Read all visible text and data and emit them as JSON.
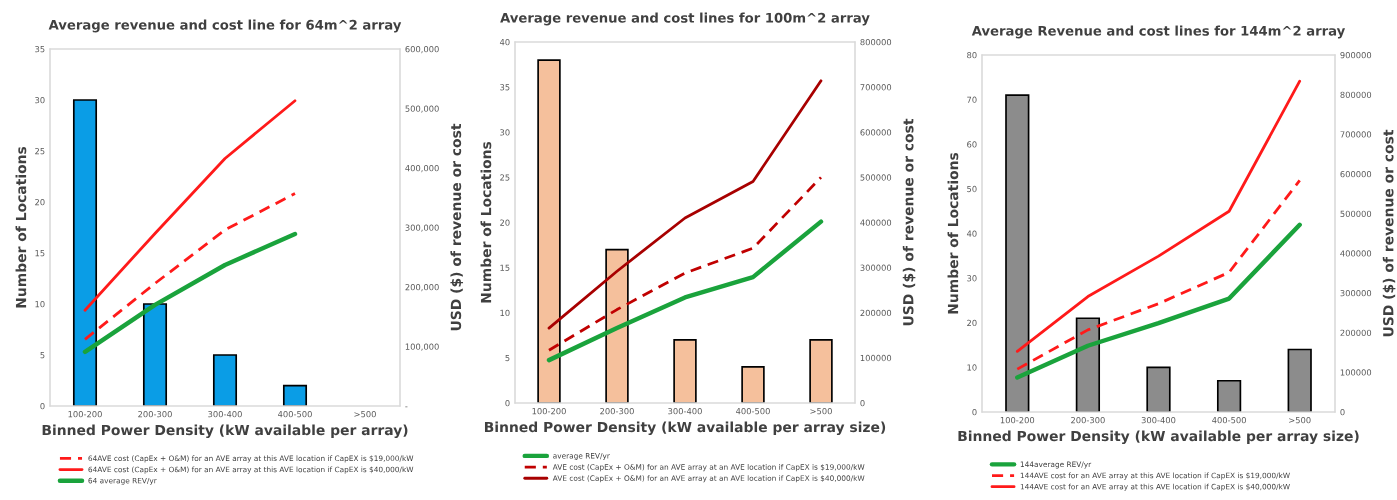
{
  "chart_data": [
    {
      "type": "bar",
      "title": "Average revenue and cost line for 64m^2 array",
      "xlabel": "Binned Power Density (kW available per array)",
      "ylabel": "Number of Locations",
      "y2label": "USD ($) of revenue or cost",
      "categories": [
        "100-200",
        "200-300",
        "300-400",
        "400-500",
        ">500"
      ],
      "series": [
        {
          "color": "#0a9de6",
          "values": [
            30,
            10,
            5,
            2,
            null
          ]
        },
        {
          "type": "line",
          "axis": "y2",
          "name": "64AVE cost (CapEx + O&M) for an AVE array at this AVE location if CapEX is $19,000/kW",
          "color": "#ff1a1a",
          "line_style": "dashed",
          "values": [
            112000,
            206000,
            296000,
            357000,
            null
          ]
        },
        {
          "type": "line",
          "axis": "y2",
          "name": "64AVE cost (CapEx + O&M) for an AVE array at this AVE location if CapEX is $40,000/kW",
          "color": "#ff1a1a",
          "line_style": "solid",
          "values": [
            161000,
            290000,
            416000,
            513000,
            null
          ]
        },
        {
          "type": "line",
          "axis": "y2",
          "name": "64 average REV/yr",
          "color": "#1aa33c",
          "line_style": "solid",
          "values": [
            91000,
            170000,
            237000,
            289000,
            null
          ]
        }
      ],
      "ylim": [
        0,
        35
      ],
      "yticks": [
        0,
        5,
        10,
        15,
        20,
        25,
        30,
        35
      ],
      "y2lim": [
        0,
        600000
      ],
      "y2ticks": [
        {
          "value": 0,
          "label": "-"
        },
        {
          "value": 100000,
          "label": "100,000"
        },
        {
          "value": 200000,
          "label": "200,000"
        },
        {
          "value": 300000,
          "label": "300,000"
        },
        {
          "value": 400000,
          "label": "400,000"
        },
        {
          "value": 500000,
          "label": "500,000"
        },
        {
          "value": 600000,
          "label": "600,000"
        }
      ],
      "grid": false,
      "legend": "bottom"
    },
    {
      "type": "bar",
      "title": "Average revenue and cost lines for 100m^2 array",
      "xlabel": "Binned Power Density (kW available per array size)",
      "ylabel": "Number of Locations",
      "y2label": "USD ($) of revenue or cost",
      "categories": [
        "100-200",
        "200-300",
        "300-400",
        "400-500",
        ">500"
      ],
      "series": [
        {
          "color": "#f5c09c",
          "values": [
            38,
            17,
            7,
            4,
            7
          ]
        },
        {
          "type": "line",
          "axis": "y2",
          "name": "average REV/yr",
          "color": "#1aa33c",
          "line_style": "solid",
          "values": [
            95000,
            166000,
            234000,
            279000,
            402000
          ]
        },
        {
          "type": "line",
          "axis": "y2",
          "name": "AVE cost (CapEx + O&M) for an AVE array at an AVE location if CapEX is $19,000/kW",
          "color": "#c00000",
          "line_style": "dashed",
          "values": [
            117000,
            207000,
            288000,
            343000,
            500000
          ]
        },
        {
          "type": "line",
          "axis": "y2",
          "name": "AVE cost (CapEx + O&M) for an AVE array at an AVE location if CapEX is $40,000/kW",
          "color": "#a80000",
          "line_style": "solid",
          "values": [
            166000,
            292000,
            410000,
            491000,
            714000
          ]
        }
      ],
      "ylim": [
        0,
        40
      ],
      "yticks": [
        0,
        5,
        10,
        15,
        20,
        25,
        30,
        35,
        40
      ],
      "y2lim": [
        0,
        800000
      ],
      "y2ticks": [
        0,
        100000,
        200000,
        300000,
        400000,
        500000,
        600000,
        700000,
        800000
      ],
      "grid": false,
      "legend": "bottom"
    },
    {
      "type": "bar",
      "title": "Average Revenue and cost lines for 144m^2 array",
      "xlabel": "Binned Power Density (kW available per array size)",
      "ylabel": "Number of Locations",
      "y2label": "USD ($) of revenue or cost",
      "categories": [
        "100-200",
        "200-300",
        "300-400",
        "400-500",
        ">500"
      ],
      "series": [
        {
          "color": "#8c8c8c",
          "values": [
            71,
            21,
            10,
            7,
            14
          ]
        },
        {
          "type": "line",
          "axis": "y2",
          "name": "144average REV/yr",
          "color": "#1aa33c",
          "line_style": "solid",
          "values": [
            87000,
            167000,
            224000,
            286000,
            472000
          ]
        },
        {
          "type": "line",
          "axis": "y2",
          "name": "144AVE cost for an AVE array at this AVE location if CapEX is $19,000/kW",
          "color": "#ff1a1a",
          "line_style": "dashed",
          "values": [
            108000,
            207000,
            273000,
            352000,
            584000
          ]
        },
        {
          "type": "line",
          "axis": "y2",
          "name": "144AVE cost for an AVE array at this AVE location if CapEX is $40,000/kW",
          "color": "#ff1a1a",
          "line_style": "solid",
          "values": [
            153000,
            291000,
            393000,
            506000,
            834000
          ]
        }
      ],
      "ylim": [
        0,
        80
      ],
      "yticks": [
        0,
        10,
        20,
        30,
        40,
        50,
        60,
        70,
        80
      ],
      "y2lim": [
        0,
        900000
      ],
      "y2ticks": [
        0,
        100000,
        200000,
        300000,
        400000,
        500000,
        600000,
        700000,
        800000,
        900000
      ],
      "grid": false,
      "legend": "bottom"
    }
  ]
}
